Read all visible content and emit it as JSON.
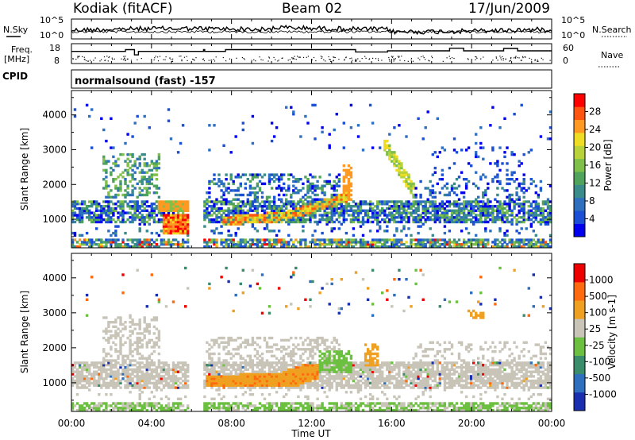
{
  "header": {
    "station": "Kodiak (fitACF)",
    "beam": "Beam 02",
    "date": "17/Jun/2009"
  },
  "noise_panel": {
    "left_label": "N.Sky",
    "right_label": "N.Search",
    "left_ticks": [
      "10^5",
      "10^0"
    ],
    "right_ticks": [
      "10^5",
      "10^0"
    ]
  },
  "freq_panel": {
    "left_label_line1": "Freq.",
    "left_label_line2": "[MHz]",
    "right_label": "Nave",
    "left_ticks": [
      "18",
      "8"
    ],
    "right_ticks": [
      "60",
      "0"
    ],
    "freq_steps": [
      [
        0,
        14.5
      ],
      [
        2.7,
        14.5
      ],
      [
        2.7,
        15.5
      ],
      [
        3.15,
        15.5
      ],
      [
        3.15,
        12.5
      ],
      [
        3.35,
        12.5
      ],
      [
        3.35,
        14.5
      ],
      [
        6.6,
        14.5
      ],
      [
        6.6,
        15.5
      ],
      [
        6.66,
        15.5
      ],
      [
        6.66,
        14.5
      ],
      [
        7.7,
        14.5
      ],
      [
        7.7,
        15.5
      ],
      [
        14.2,
        15.5
      ],
      [
        14.2,
        14.2
      ],
      [
        15.8,
        14.2
      ],
      [
        15.8,
        14.8
      ],
      [
        18.9,
        14.8
      ],
      [
        18.9,
        16.3
      ],
      [
        19.6,
        16.3
      ],
      [
        19.6,
        14.8
      ],
      [
        21.6,
        14.8
      ],
      [
        21.6,
        16.2
      ],
      [
        22.3,
        16.2
      ],
      [
        22.3,
        14.8
      ],
      [
        24,
        14.8
      ]
    ]
  },
  "cpid": {
    "label": "CPID",
    "program": "normalsound (fast) -157"
  },
  "power_panel": {
    "ylabel": "Slant Range [km]",
    "yticks": [
      "4000",
      "3000",
      "2000",
      "1000"
    ],
    "colorbar_label": "Power [dB]",
    "colorbar_ticks": [
      "28",
      "24",
      "20",
      "16",
      "12",
      "8",
      "4"
    ],
    "colors": [
      "#0000ee",
      "#1a4fd6",
      "#2e6fbf",
      "#3a8c8a",
      "#4fa35a",
      "#7ec04a",
      "#b8d23a",
      "#eedd22",
      "#ff9922",
      "#ff5511",
      "#ff0000"
    ]
  },
  "velocity_panel": {
    "ylabel": "Slant Range [km]",
    "yticks": [
      "4000",
      "3000",
      "2000",
      "1000"
    ],
    "colorbar_label": "Velocity [m s-1]",
    "colorbar_ticks": [
      "1000",
      "500",
      "100",
      "25",
      "-25",
      "-100",
      "-500",
      "-1000"
    ],
    "colors": [
      "#1a2fb0",
      "#2e6fbf",
      "#3a8c6a",
      "#6cc040",
      "#c8c4b8",
      "#f0a020",
      "#ff6a10",
      "#ee0000"
    ]
  },
  "x_axis": {
    "label": "Time UT",
    "ticks": [
      "00:00",
      "04:00",
      "08:00",
      "12:00",
      "16:00",
      "20:00",
      "00:00"
    ]
  },
  "chart_data": [
    {
      "type": "heatmap",
      "title": "Power",
      "xlabel": "Time UT",
      "ylabel": "Slant Range [km]",
      "xlim": [
        0,
        24
      ],
      "ylim": [
        180,
        4700
      ],
      "colorbar": {
        "label": "Power [dB]",
        "range": [
          0,
          32
        ]
      },
      "features": [
        {
          "name": "band_1000km",
          "t": [
            0,
            24
          ],
          "range_km": [
            950,
            1500
          ],
          "power_db": 10
        },
        {
          "name": "morning_red_patch",
          "t": [
            4.5,
            6.3
          ],
          "range_km": [
            600,
            1200
          ],
          "power_db": 28
        },
        {
          "name": "evening_rising_arc",
          "t": [
            7.5,
            13.5
          ],
          "range_km": [
            900,
            1700
          ],
          "power_db": 22
        },
        {
          "name": "spike_16h",
          "t": [
            15.5,
            17.5
          ],
          "range_km": [
            1800,
            3200
          ],
          "power_db": 20
        },
        {
          "name": "ground_scatter_base",
          "t": [
            0,
            24
          ],
          "range_km": [
            180,
            500
          ],
          "power_db": 18
        }
      ]
    },
    {
      "type": "heatmap",
      "title": "Velocity",
      "xlabel": "Time UT",
      "ylabel": "Slant Range [km]",
      "xlim": [
        0,
        24
      ],
      "ylim": [
        180,
        4700
      ],
      "colorbar": {
        "label": "Velocity [m s-1]",
        "range": [
          -1000,
          1000
        ]
      },
      "features": [
        {
          "name": "ground_scatter_grey",
          "t": [
            0,
            24
          ],
          "range_km": [
            900,
            1700
          ],
          "velocity": 0
        },
        {
          "name": "orange_arc",
          "t": [
            6.7,
            12.5
          ],
          "range_km": [
            900,
            1500
          ],
          "velocity": -150
        },
        {
          "name": "green_strip_13h",
          "t": [
            12.5,
            14
          ],
          "range_km": [
            1300,
            1900
          ],
          "velocity": 150
        },
        {
          "name": "orange_spike_15h",
          "t": [
            14.7,
            15.3
          ],
          "range_km": [
            1500,
            2100
          ],
          "velocity": -200
        },
        {
          "name": "green_base",
          "t": [
            0,
            24
          ],
          "range_km": [
            180,
            450
          ],
          "velocity": 120
        }
      ]
    }
  ]
}
